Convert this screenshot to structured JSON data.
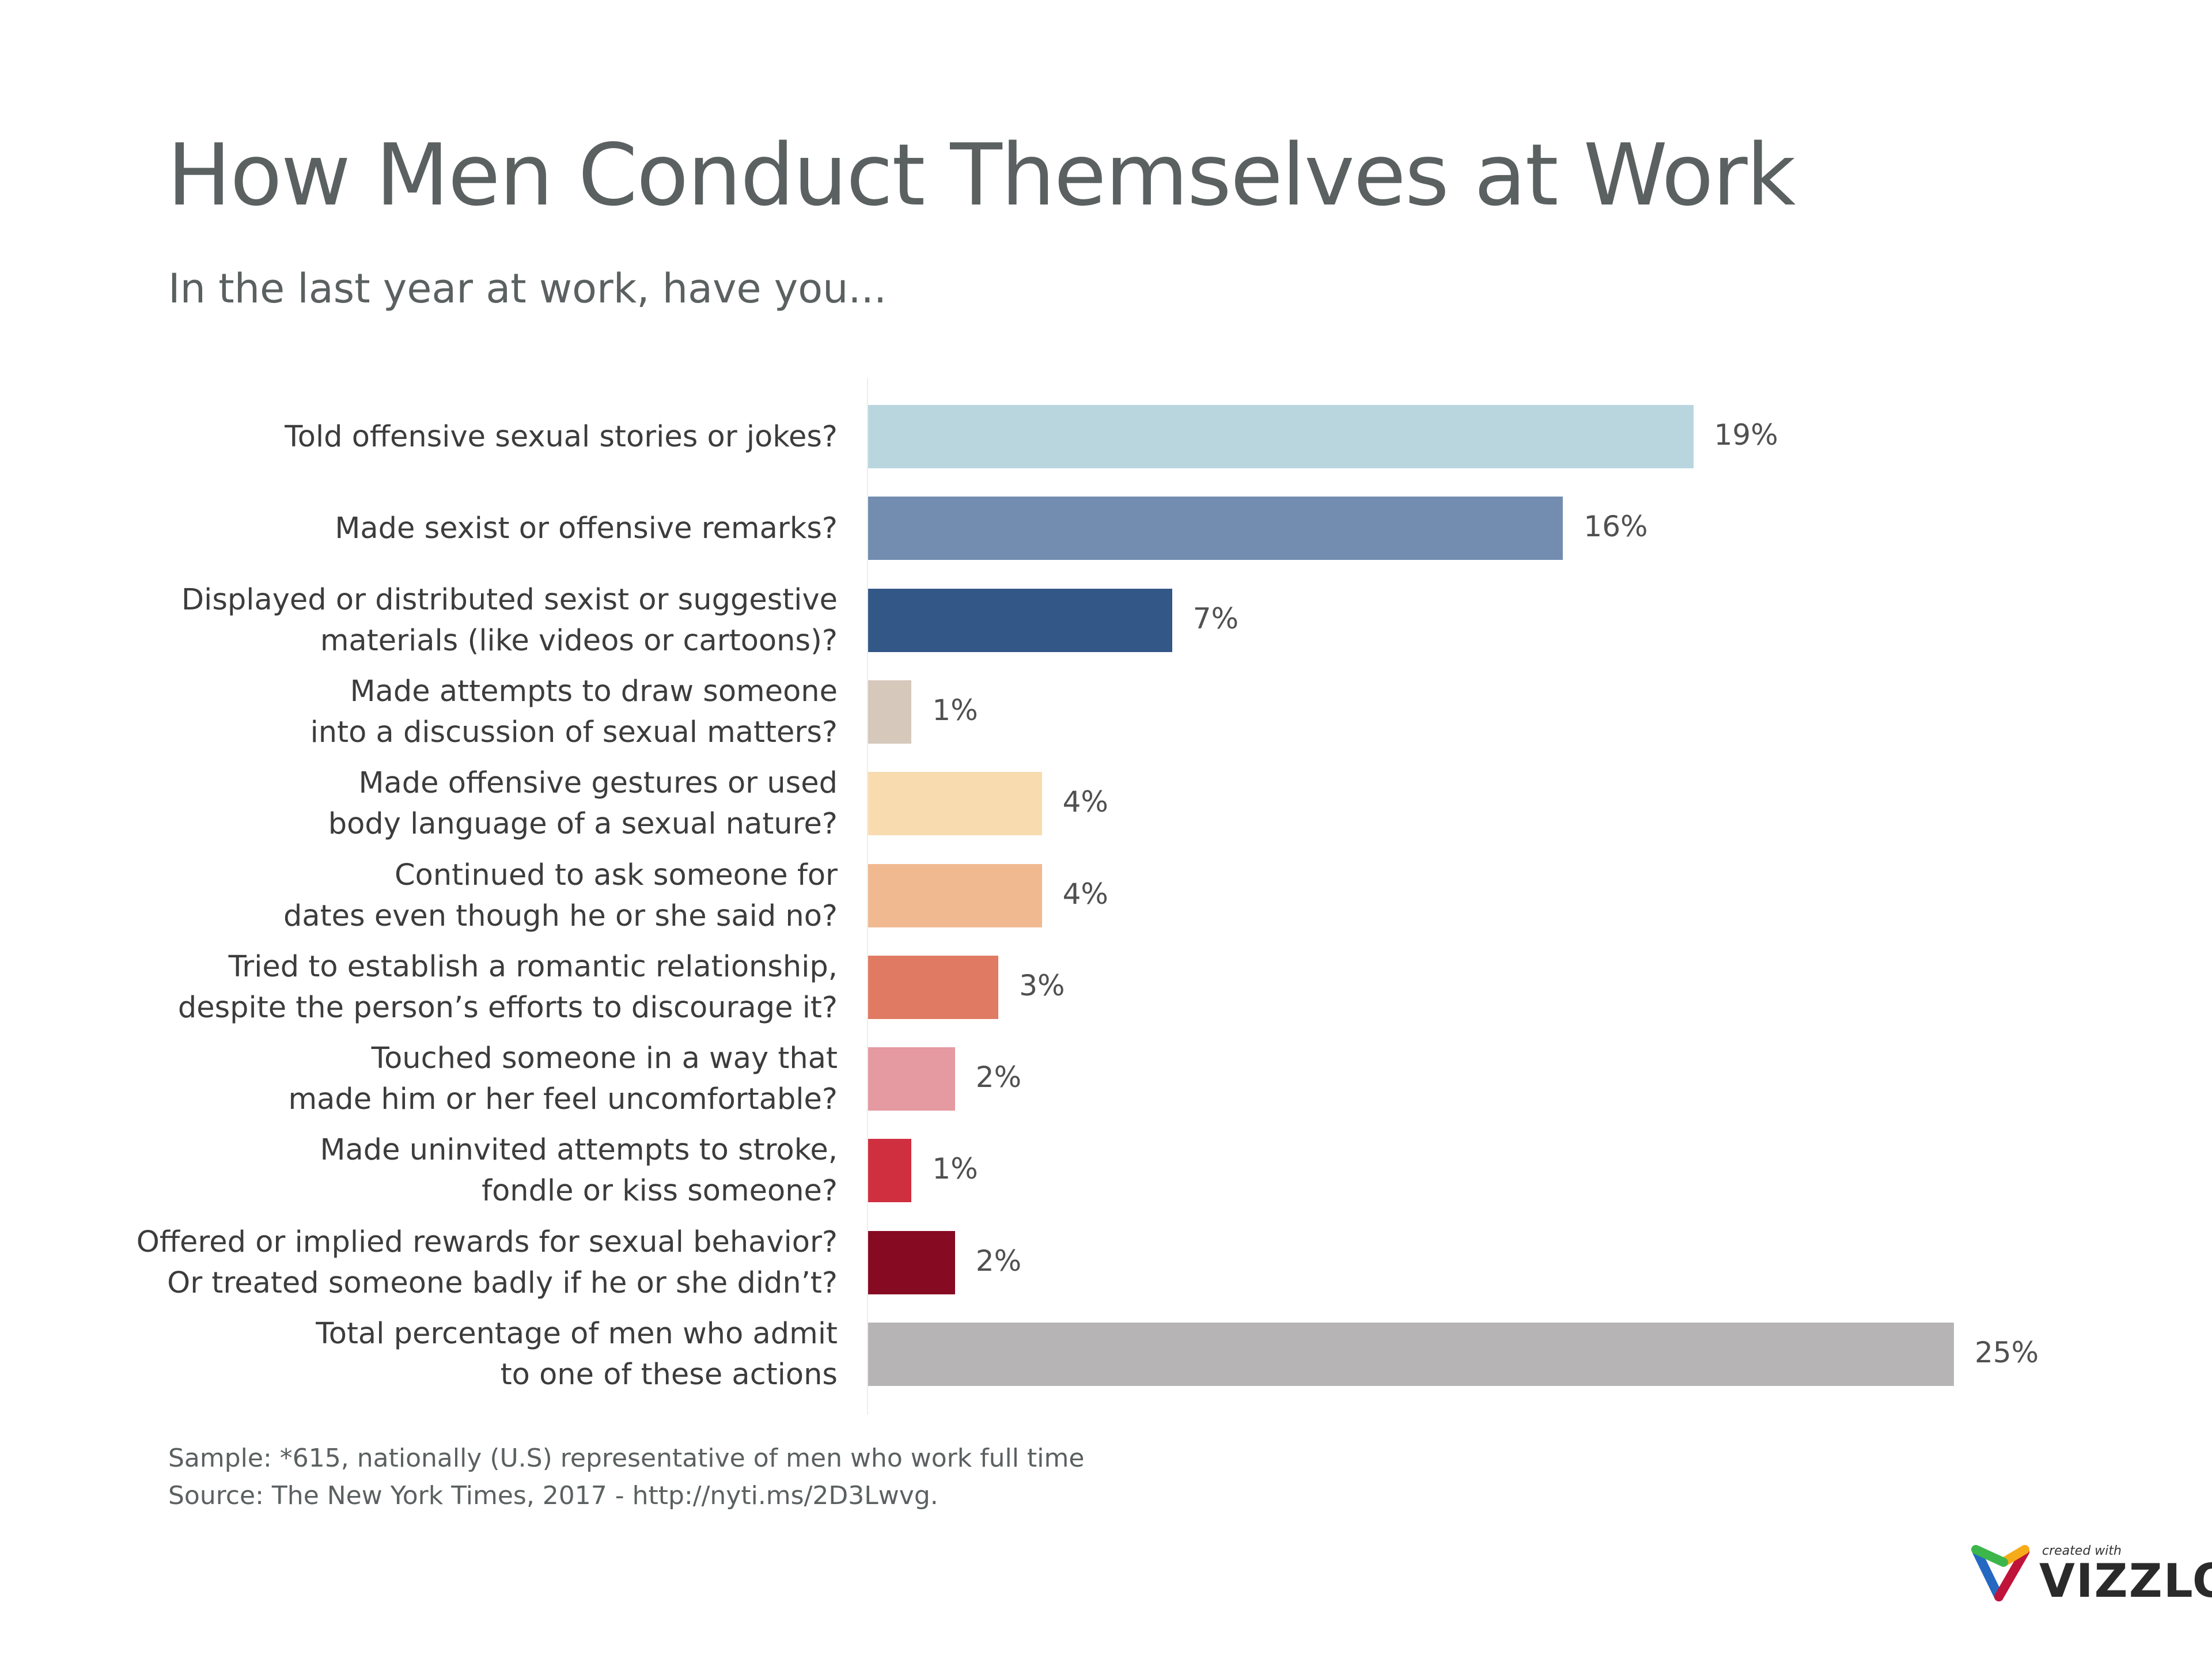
{
  "chart_data": {
    "type": "bar",
    "orientation": "horizontal",
    "title": "How Men Conduct Themselves at Work",
    "subtitle": "In the last year at work, have you...",
    "categories": [
      "Told offensive sexual stories or jokes?",
      "Made sexist or offensive remarks?",
      "Displayed or distributed sexist or suggestive\nmaterials (like videos or cartoons)?",
      "Made attempts to draw someone\ninto a discussion of sexual matters?",
      "Made offensive gestures or used\nbody language of a sexual nature?",
      "Continued to ask someone for\ndates even though he or she said no?",
      "Tried to establish a romantic relationship,\ndespite the person’s efforts to discourage it?",
      "Touched someone in a way that\nmade him or her feel uncomfortable?",
      "Made uninvited attempts to stroke,\nfondle or kiss someone?",
      "Offered or implied rewards for sexual behavior?\nOr treated someone badly if he or she didn’t?",
      "Total percentage of men who admit\nto one of these actions"
    ],
    "values": [
      19,
      16,
      7,
      1,
      4,
      4,
      3,
      2,
      1,
      2,
      25
    ],
    "value_labels": [
      "19%",
      "16%",
      "7%",
      "1%",
      "4%",
      "4%",
      "3%",
      "2%",
      "1%",
      "2%",
      "25%"
    ],
    "colors": [
      "#b9d6df",
      "#738db0",
      "#335888",
      "#d6c8bb",
      "#f8dcaf",
      "#f0b990",
      "#e07a62",
      "#e49aa0",
      "#cf2f3f",
      "#860a22",
      "#b6b4b5"
    ],
    "unit": "%",
    "grid": false,
    "legend": "none"
  },
  "footer": {
    "sample": "Sample: *615, nationally (U.S) representative of men who work full time",
    "source": "Source: The New York Times, 2017 -  http://nyti.ms/2D3Lwvg."
  },
  "logo": {
    "small": "created with",
    "brand": "VIZZLO"
  }
}
